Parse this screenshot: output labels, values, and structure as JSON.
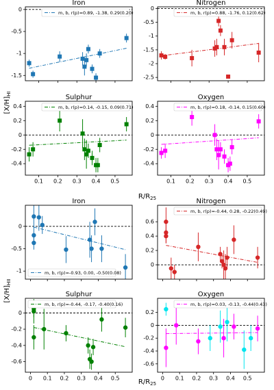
{
  "labels": {
    "top_ylabel": "[X/H]",
    "top_ylabel_sub": "HI",
    "top_xlabel": "R/R",
    "top_xlabel_sub": "25",
    "bottom_ylabel": "[X/H]",
    "bottom_ylabel_sub": "HII",
    "bottom_xlabel": "R/R",
    "bottom_xlabel_sub": "25"
  },
  "chart_data": [
    {
      "type": "scatter",
      "title": "Iron",
      "marker": "square",
      "color": "#1f77b4",
      "xlim": [
        0.03,
        0.59
      ],
      "xticks": [
        0.1,
        0.2,
        0.3,
        0.4,
        0.5
      ],
      "ylim": [
        -1.62,
        0.06
      ],
      "yticks": [
        -1.5,
        -1.0,
        -0.5,
        0.0
      ],
      "hline": 0,
      "legend_loc": "upper right",
      "fit": {
        "label": "m, b, r(p)=0.89, -1.38, 0.29(0.20)",
        "m": 0.89,
        "b": -1.38
      },
      "series": [
        {
          "color": "#1f77b4",
          "x": [
            0.05,
            0.07,
            0.21,
            0.33,
            0.34,
            0.35,
            0.36,
            0.38,
            0.4,
            0.42,
            0.56
          ],
          "values": [
            -1.22,
            -1.47,
            -1.07,
            -1.12,
            -1.3,
            -1.15,
            -0.9,
            -1.35,
            -1.55,
            -1.0,
            -0.65
          ],
          "errors": [
            0.08,
            0.08,
            0.12,
            0.15,
            0.2,
            0.15,
            0.1,
            0.1,
            0.1,
            0.1,
            0.1
          ]
        }
      ]
    },
    {
      "type": "scatter",
      "title": "Nitrogen",
      "marker": "square",
      "color": "#d62728",
      "xlim": [
        0.03,
        0.59
      ],
      "xticks": [
        0.1,
        0.2,
        0.3,
        0.4,
        0.5
      ],
      "ylim": [
        -2.62,
        0.06
      ],
      "yticks": [
        -2.5,
        -2.0,
        -1.5,
        -1.0,
        -0.5,
        0.0
      ],
      "hline": 0,
      "legend_loc": "upper right",
      "fit": {
        "label": "m, b, r(p)=0.88, -1.76, 0.12(0.62)",
        "m": 0.88,
        "b": -1.76
      },
      "series": [
        {
          "color": "#d62728",
          "x": [
            0.05,
            0.07,
            0.21,
            0.33,
            0.34,
            0.35,
            0.36,
            0.38,
            0.4,
            0.42,
            0.56
          ],
          "values": [
            -1.7,
            -1.75,
            -1.8,
            -1.45,
            -1.4,
            -0.45,
            -0.8,
            -1.4,
            -2.47,
            -1.15,
            -1.6
          ],
          "errors": [
            0.15,
            0.1,
            0.3,
            0.3,
            0.3,
            0.2,
            0.2,
            0.3,
            0.05,
            0.3,
            0.35
          ]
        }
      ]
    },
    {
      "type": "scatter",
      "title": "Sulphur",
      "marker": "square",
      "color": "#008000",
      "xlim": [
        0.03,
        0.59
      ],
      "xticks": [
        0.1,
        0.2,
        0.3,
        0.4,
        0.5
      ],
      "ylim": [
        -0.56,
        0.47
      ],
      "yticks": [
        -0.4,
        -0.2,
        0.0,
        0.2,
        0.4
      ],
      "hline": 0,
      "legend_loc": "upper right",
      "fit": {
        "label": "m, b, r(p)=0.14, -0.15, 0.09(0.71)",
        "m": 0.14,
        "b": -0.15
      },
      "series": [
        {
          "color": "#008000",
          "x": [
            0.05,
            0.07,
            0.21,
            0.33,
            0.34,
            0.35,
            0.36,
            0.38,
            0.4,
            0.41,
            0.42,
            0.56
          ],
          "values": [
            -0.27,
            -0.2,
            0.2,
            0.02,
            -0.2,
            -0.27,
            -0.22,
            -0.32,
            -0.42,
            -0.42,
            -0.14,
            0.15
          ],
          "errors": [
            0.1,
            0.1,
            0.15,
            0.2,
            0.15,
            0.2,
            0.1,
            0.1,
            0.1,
            0.1,
            0.1,
            0.1
          ]
        }
      ]
    },
    {
      "type": "scatter",
      "title": "Oxygen",
      "marker": "square",
      "color": "#ff00ff",
      "xlim": [
        0.03,
        0.59
      ],
      "xticks": [
        0.1,
        0.2,
        0.3,
        0.4,
        0.5
      ],
      "ylim": [
        -0.56,
        0.47
      ],
      "yticks": [
        -0.4,
        -0.2,
        0.0,
        0.2,
        0.4
      ],
      "hline": 0,
      "legend_loc": "upper right",
      "fit": {
        "label": "m, b, r(p)=0.18, -0.14, 0.15(0.60)",
        "m": 0.18,
        "b": -0.14
      },
      "series": [
        {
          "color": "#ff00ff",
          "x": [
            0.05,
            0.07,
            0.21,
            0.33,
            0.34,
            0.35,
            0.36,
            0.38,
            0.4,
            0.41,
            0.42,
            0.56
          ],
          "values": [
            -0.25,
            -0.22,
            0.25,
            0.0,
            -0.2,
            -0.28,
            -0.2,
            -0.3,
            -0.42,
            -0.4,
            -0.17,
            0.19
          ],
          "errors": [
            0.08,
            0.1,
            0.12,
            0.15,
            0.15,
            0.2,
            0.1,
            0.1,
            0.1,
            0.1,
            0.1,
            0.1
          ]
        }
      ]
    },
    {
      "type": "scatter",
      "title": "Iron",
      "marker": "circle",
      "color": "#1f77b4",
      "xlim": [
        -0.03,
        0.6
      ],
      "xticks": [
        0.0,
        0.1,
        0.2,
        0.3,
        0.4,
        0.5
      ],
      "ylim": [
        -1.18,
        0.47
      ],
      "yticks": [
        -1.0,
        -0.5,
        0.0
      ],
      "hline": 0,
      "legend_loc": "lower left",
      "fit": {
        "label": "m, b, r(p)=-0.93, 0.00, -0.50(0.08)",
        "m": -0.93,
        "b": 0.0
      },
      "series": [
        {
          "color": "#1f77b4",
          "x": [
            0.02,
            0.02,
            0.02,
            0.05,
            0.07,
            0.21,
            0.35,
            0.36,
            0.38,
            0.42,
            0.56
          ],
          "values": [
            0.22,
            -0.2,
            -0.37,
            0.2,
            0.03,
            -0.52,
            -0.3,
            -0.5,
            0.1,
            -0.5,
            -0.92
          ],
          "errors": [
            0.25,
            0.2,
            0.15,
            0.3,
            0.2,
            0.3,
            0.4,
            0.3,
            0.3,
            0.3,
            0.3
          ]
        }
      ]
    },
    {
      "type": "scatter",
      "title": "Nitrogen",
      "marker": "circle",
      "color": "#d62728",
      "xlim": [
        -0.03,
        0.6
      ],
      "xticks": [
        0.0,
        0.1,
        0.2,
        0.3,
        0.4,
        0.5
      ],
      "ylim": [
        -0.2,
        0.83
      ],
      "yticks": [
        0.0,
        0.2,
        0.4,
        0.6
      ],
      "hline": 0,
      "legend_loc": "upper right",
      "fit": {
        "label": "m, b, r(p)=-0.44, 0.28, -0.22(0.49)",
        "m": -0.44,
        "b": 0.28
      },
      "series": [
        {
          "color": "#d62728",
          "x": [
            0.02,
            0.02,
            0.02,
            0.05,
            0.07,
            0.21,
            0.34,
            0.35,
            0.36,
            0.37,
            0.38,
            0.42,
            0.56
          ],
          "values": [
            0.6,
            0.45,
            0.4,
            -0.05,
            -0.1,
            0.25,
            0.15,
            0.05,
            0.0,
            -0.05,
            0.1,
            0.35,
            0.1
          ],
          "errors": [
            0.2,
            0.15,
            0.1,
            0.15,
            0.1,
            0.2,
            0.1,
            0.1,
            0.2,
            0.2,
            0.15,
            0.2,
            0.15
          ]
        }
      ]
    },
    {
      "type": "scatter",
      "title": "Sulphur",
      "marker": "circle",
      "color": "#008000",
      "xlim": [
        -0.03,
        0.6
      ],
      "xticks": [
        0.0,
        0.1,
        0.2,
        0.3,
        0.4,
        0.5
      ],
      "ylim": [
        -0.73,
        0.18
      ],
      "yticks": [
        -0.6,
        -0.4,
        -0.2,
        0.0
      ],
      "hline": 0,
      "legend_loc": "upper left",
      "fit": {
        "label": "m, b, r(p)=-0.44, -0.17, -0.40(0.16)",
        "m": -0.44,
        "b": -0.17
      },
      "series": [
        {
          "color": "#008000",
          "x": [
            0.02,
            0.02,
            0.02,
            0.08,
            0.21,
            0.34,
            0.35,
            0.36,
            0.37,
            0.42,
            0.56
          ],
          "values": [
            0.05,
            0.02,
            -0.3,
            -0.2,
            -0.25,
            -0.4,
            -0.57,
            -0.6,
            -0.42,
            -0.08,
            -0.18
          ],
          "errors": [
            0.1,
            0.15,
            0.15,
            0.25,
            0.1,
            0.1,
            0.12,
            0.1,
            0.1,
            0.15,
            0.12
          ]
        }
      ]
    },
    {
      "type": "scatter",
      "title": "Oxygen",
      "marker": "circle",
      "color": "#ff00ff",
      "xlim": [
        -0.03,
        0.6
      ],
      "xticks": [
        0.0,
        0.1,
        0.2,
        0.3,
        0.4,
        0.5
      ],
      "ylim": [
        -0.73,
        0.42
      ],
      "yticks": [
        -0.6,
        -0.4,
        -0.2,
        0.0,
        0.2
      ],
      "hline": 0,
      "legend_loc": "upper right",
      "fit": {
        "label": "m, b, r(p)=0.03, -0.13, -0.44(0.43)",
        "m": 0.03,
        "b": -0.13
      },
      "series": [
        {
          "color": "#ff00ff",
          "x": [
            0.02,
            0.08,
            0.21,
            0.36,
            0.42,
            0.56
          ],
          "values": [
            -0.35,
            0.0,
            -0.25,
            -0.2,
            -0.02,
            -0.05
          ],
          "errors": [
            0.3,
            0.3,
            0.2,
            0.3,
            0.2,
            0.2
          ]
        },
        {
          "color": "#00e5ee",
          "x": [
            0.02,
            0.28,
            0.34,
            0.38,
            0.48,
            0.52
          ],
          "values": [
            0.25,
            -0.2,
            -0.02,
            0.05,
            -0.38,
            -0.2
          ],
          "errors": [
            0.1,
            0.2,
            0.25,
            0.3,
            0.3,
            0.2
          ]
        }
      ]
    }
  ]
}
